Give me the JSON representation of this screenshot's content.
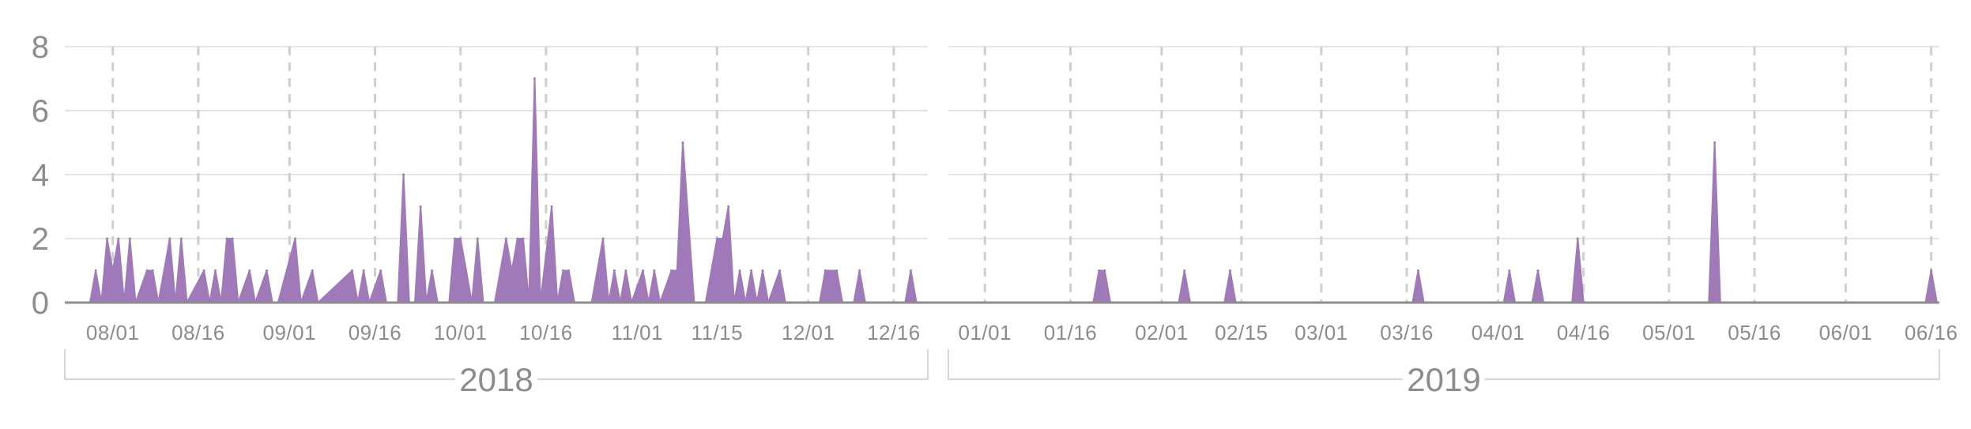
{
  "colors": {
    "area": "#a07ab8",
    "baseline": "#8c8c8c",
    "grid": "#dcdcdc",
    "vgrid": "#cfcfcf",
    "text": "#8c8c8c",
    "bracket": "#d6d6d6"
  },
  "chart_data": {
    "type": "area",
    "title": "",
    "xlabel": "",
    "ylabel": "",
    "ylim": [
      0,
      8
    ],
    "yticks": [
      0,
      2,
      4,
      6,
      8
    ],
    "grid": {
      "horizontal": true,
      "vertical": "dashed"
    },
    "xlim": [
      "2018-07-24",
      "2019-06-22"
    ],
    "panels": [
      {
        "name": "2018",
        "range": [
          "2018-07-24",
          "2018-12-31"
        ],
        "tick_dates": [
          "2018-08-01",
          "2018-08-16",
          "2018-09-01",
          "2018-09-16",
          "2018-10-01",
          "2018-10-16",
          "2018-11-01",
          "2018-11-15",
          "2018-12-01",
          "2018-12-16"
        ],
        "tick_labels": [
          "08/01",
          "08/16",
          "09/01",
          "09/16",
          "10/01",
          "10/16",
          "11/01",
          "11/15",
          "12/01",
          "12/16"
        ]
      },
      {
        "name": "2019",
        "range": [
          "2019-01-01",
          "2019-06-22"
        ],
        "tick_dates": [
          "2019-01-01",
          "2019-01-16",
          "2019-02-01",
          "2019-02-15",
          "2019-03-01",
          "2019-03-16",
          "2019-04-01",
          "2019-04-16",
          "2019-05-01",
          "2019-05-16",
          "2019-06-01",
          "2019-06-16"
        ],
        "tick_labels": [
          "01/01",
          "01/16",
          "02/01",
          "02/15",
          "03/01",
          "03/16",
          "04/01",
          "04/16",
          "05/01",
          "05/16",
          "06/01",
          "06/16"
        ]
      }
    ],
    "series": [
      {
        "values": [
          [
            "2018-07-28",
            0
          ],
          [
            "2018-07-29",
            1
          ],
          [
            "2018-07-30",
            0
          ],
          [
            "2018-07-31",
            2
          ],
          [
            "2018-08-01",
            1
          ],
          [
            "2018-08-02",
            2
          ],
          [
            "2018-08-03",
            0
          ],
          [
            "2018-08-04",
            2
          ],
          [
            "2018-08-05",
            0
          ],
          [
            "2018-08-07",
            1
          ],
          [
            "2018-08-08",
            1
          ],
          [
            "2018-08-09",
            0
          ],
          [
            "2018-08-11",
            2
          ],
          [
            "2018-08-12",
            0
          ],
          [
            "2018-08-13",
            2
          ],
          [
            "2018-08-14",
            0
          ],
          [
            "2018-08-17",
            1
          ],
          [
            "2018-08-18",
            0
          ],
          [
            "2018-08-19",
            1
          ],
          [
            "2018-08-20",
            0
          ],
          [
            "2018-08-21",
            2
          ],
          [
            "2018-08-22",
            2
          ],
          [
            "2018-08-23",
            0
          ],
          [
            "2018-08-25",
            1
          ],
          [
            "2018-08-26",
            0
          ],
          [
            "2018-08-28",
            1
          ],
          [
            "2018-08-29",
            0
          ],
          [
            "2018-08-30",
            0
          ],
          [
            "2018-09-02",
            2
          ],
          [
            "2018-09-03",
            0
          ],
          [
            "2018-09-05",
            1
          ],
          [
            "2018-09-06",
            0
          ],
          [
            "2018-09-12",
            1
          ],
          [
            "2018-09-13",
            0
          ],
          [
            "2018-09-14",
            1
          ],
          [
            "2018-09-15",
            0
          ],
          [
            "2018-09-17",
            1
          ],
          [
            "2018-09-18",
            0
          ],
          [
            "2018-09-20",
            0
          ],
          [
            "2018-09-21",
            4
          ],
          [
            "2018-09-22",
            0
          ],
          [
            "2018-09-23",
            0
          ],
          [
            "2018-09-24",
            3
          ],
          [
            "2018-09-25",
            0
          ],
          [
            "2018-09-26",
            1
          ],
          [
            "2018-09-27",
            0
          ],
          [
            "2018-09-29",
            0
          ],
          [
            "2018-09-30",
            2
          ],
          [
            "2018-10-01",
            2
          ],
          [
            "2018-10-03",
            0
          ],
          [
            "2018-10-04",
            2
          ],
          [
            "2018-10-05",
            0
          ],
          [
            "2018-10-07",
            0
          ],
          [
            "2018-10-09",
            2
          ],
          [
            "2018-10-10",
            1
          ],
          [
            "2018-10-11",
            2
          ],
          [
            "2018-10-12",
            2
          ],
          [
            "2018-10-13",
            0
          ],
          [
            "2018-10-14",
            7
          ],
          [
            "2018-10-15",
            0
          ],
          [
            "2018-10-17",
            3
          ],
          [
            "2018-10-18",
            0
          ],
          [
            "2018-10-19",
            1
          ],
          [
            "2018-10-20",
            1
          ],
          [
            "2018-10-21",
            0
          ],
          [
            "2018-10-24",
            0
          ],
          [
            "2018-10-26",
            2
          ],
          [
            "2018-10-27",
            0
          ],
          [
            "2018-10-28",
            1
          ],
          [
            "2018-10-29",
            0
          ],
          [
            "2018-10-30",
            1
          ],
          [
            "2018-10-31",
            0
          ],
          [
            "2018-11-02",
            1
          ],
          [
            "2018-11-03",
            0
          ],
          [
            "2018-11-04",
            1
          ],
          [
            "2018-11-05",
            0
          ],
          [
            "2018-11-07",
            1
          ],
          [
            "2018-11-08",
            1
          ],
          [
            "2018-11-09",
            5
          ],
          [
            "2018-11-11",
            0
          ],
          [
            "2018-11-13",
            0
          ],
          [
            "2018-11-15",
            2
          ],
          [
            "2018-11-16",
            2
          ],
          [
            "2018-11-17",
            3
          ],
          [
            "2018-11-18",
            0
          ],
          [
            "2018-11-19",
            1
          ],
          [
            "2018-11-20",
            0
          ],
          [
            "2018-11-21",
            1
          ],
          [
            "2018-11-22",
            0
          ],
          [
            "2018-11-23",
            1
          ],
          [
            "2018-11-24",
            0
          ],
          [
            "2018-11-26",
            1
          ],
          [
            "2018-11-27",
            0
          ],
          [
            "2018-12-03",
            0
          ],
          [
            "2018-12-04",
            1
          ],
          [
            "2018-12-06",
            1
          ],
          [
            "2018-12-07",
            0
          ],
          [
            "2018-12-09",
            0
          ],
          [
            "2018-12-10",
            1
          ],
          [
            "2018-12-11",
            0
          ],
          [
            "2018-12-18",
            0
          ],
          [
            "2018-12-19",
            1
          ],
          [
            "2018-12-20",
            0
          ],
          [
            "2018-12-31",
            0
          ],
          [
            "2019-01-01",
            0
          ],
          [
            "2019-01-20",
            0
          ],
          [
            "2019-01-21",
            1
          ],
          [
            "2019-01-22",
            1
          ],
          [
            "2019-01-23",
            0
          ],
          [
            "2019-02-04",
            0
          ],
          [
            "2019-02-05",
            1
          ],
          [
            "2019-02-06",
            0
          ],
          [
            "2019-02-12",
            0
          ],
          [
            "2019-02-13",
            1
          ],
          [
            "2019-02-14",
            0
          ],
          [
            "2019-03-17",
            0
          ],
          [
            "2019-03-18",
            1
          ],
          [
            "2019-03-19",
            0
          ],
          [
            "2019-04-02",
            0
          ],
          [
            "2019-04-03",
            1
          ],
          [
            "2019-04-04",
            0
          ],
          [
            "2019-04-07",
            0
          ],
          [
            "2019-04-08",
            1
          ],
          [
            "2019-04-09",
            0
          ],
          [
            "2019-04-14",
            0
          ],
          [
            "2019-04-15",
            2
          ],
          [
            "2019-04-16",
            0
          ],
          [
            "2019-05-08",
            0
          ],
          [
            "2019-05-09",
            5
          ],
          [
            "2019-05-10",
            0
          ],
          [
            "2019-06-15",
            0
          ],
          [
            "2019-06-16",
            1
          ],
          [
            "2019-06-17",
            0
          ]
        ]
      }
    ]
  }
}
